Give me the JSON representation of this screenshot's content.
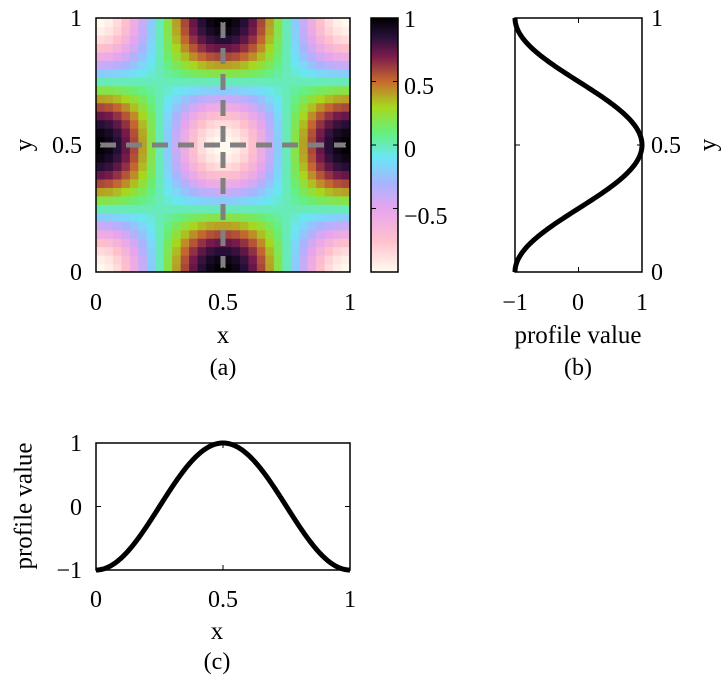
{
  "chart_data": [
    {
      "panel": "(a)",
      "type": "heatmap",
      "function": "-cos(2*pi*x)*cos(2*pi*y)",
      "grid_size": 30,
      "xlabel": "x",
      "ylabel": "y",
      "xlim": [
        0,
        1
      ],
      "ylim": [
        0,
        1
      ],
      "xticks": [
        "0",
        "0.5",
        "1"
      ],
      "yticks": [
        "0",
        "0.5",
        "1"
      ],
      "overlay_lines": {
        "x": 0.5,
        "y": 0.5,
        "style": "dashed",
        "color": "#808080"
      },
      "colorbar": {
        "range": [
          -1,
          1
        ],
        "ticks": [
          "1",
          "0.5",
          "0",
          "−0.5"
        ],
        "tick_values": [
          1,
          0.5,
          0,
          -0.5
        ],
        "colormap_stops": [
          {
            "v": -1.0,
            "color": "#fffcf0"
          },
          {
            "v": -0.75,
            "color": "#ffc0cc"
          },
          {
            "v": -0.5,
            "color": "#e6a4ee"
          },
          {
            "v": -0.3,
            "color": "#a8b4ff"
          },
          {
            "v": -0.1,
            "color": "#6ae6f6"
          },
          {
            "v": 0.1,
            "color": "#66f07a"
          },
          {
            "v": 0.3,
            "color": "#a6d81e"
          },
          {
            "v": 0.5,
            "color": "#c86a2e"
          },
          {
            "v": 0.7,
            "color": "#7a1a4c"
          },
          {
            "v": 0.85,
            "color": "#28103a"
          },
          {
            "v": 1.0,
            "color": "#000000"
          }
        ]
      }
    },
    {
      "panel": "(b)",
      "type": "line",
      "orientation": "vertical",
      "function": "-cos(2*pi*y)",
      "xlabel": "profile value",
      "ylabel": "y",
      "xlim": [
        -1,
        1
      ],
      "ylim": [
        0,
        1
      ],
      "xticks": [
        "−1",
        "0",
        "1"
      ],
      "yticks": [
        "0",
        "0.5",
        "1"
      ],
      "line_color": "#000000"
    },
    {
      "panel": "(c)",
      "type": "line",
      "function": "-cos(2*pi*x)",
      "xlabel": "x",
      "ylabel": "profile value",
      "xlim": [
        0,
        1
      ],
      "ylim": [
        -1,
        1
      ],
      "xticks": [
        "0",
        "0.5",
        "1"
      ],
      "yticks": [
        "−1",
        "0",
        "1"
      ],
      "line_color": "#000000"
    }
  ]
}
